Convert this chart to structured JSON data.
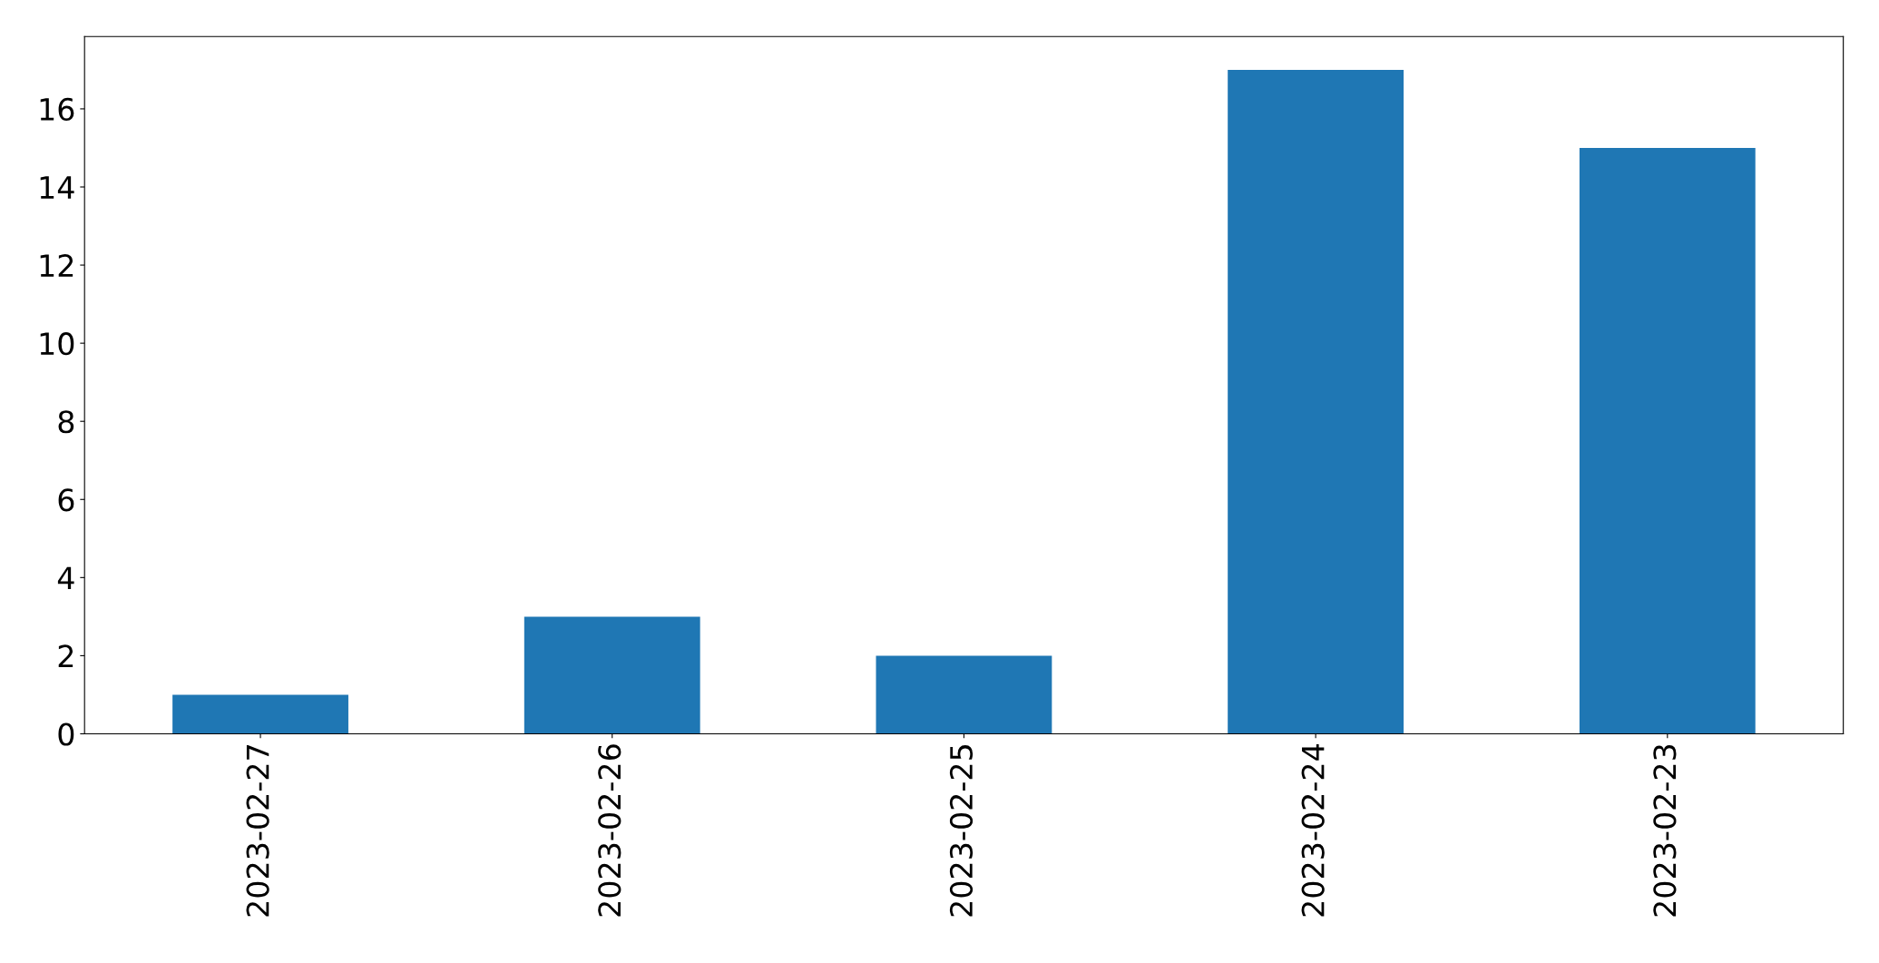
{
  "chart_data": {
    "type": "bar",
    "categories": [
      "2023-02-27",
      "2023-02-26",
      "2023-02-25",
      "2023-02-24",
      "2023-02-23"
    ],
    "values": [
      1,
      3,
      2,
      17,
      15
    ],
    "color": "#1f77b4",
    "ylim": [
      0,
      17.85
    ],
    "yticks": [
      0,
      2,
      4,
      6,
      8,
      10,
      12,
      14,
      16
    ],
    "grid": false,
    "legend": false
  }
}
